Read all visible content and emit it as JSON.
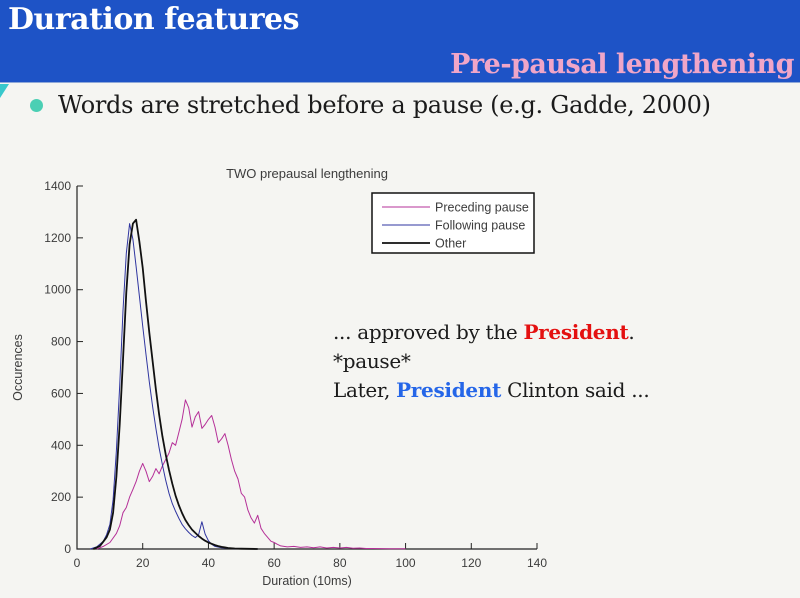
{
  "header": {
    "title": "Duration features",
    "subtitle": "Pre-pausal lengthening"
  },
  "bullet": {
    "text": "Words are stretched before a pause (e.g. Gadde, 2000)"
  },
  "annotation": {
    "line1_prefix": "... approved by the ",
    "line1_highlight": "President",
    "line1_suffix": ". *pause*",
    "line2_prefix": "Later, ",
    "line2_highlight": "President",
    "line2_suffix": " Clinton said ..."
  },
  "colors": {
    "header_bg": "#1e53c6",
    "subtitle_pink": "#f0a6c8",
    "bullet_mint": "#4bcfb4",
    "triangle_teal": "#38c8cc",
    "annotation_red": "#e41010",
    "annotation_blue": "#2566e8",
    "body_bg": "#f5f5f2"
  },
  "chart_data": {
    "type": "line",
    "title": "TWO prepausal lengthening",
    "xlabel": "Duration (10ms)",
    "ylabel": "Occurences",
    "xlim": [
      0,
      140
    ],
    "ylim": [
      0,
      1400
    ],
    "xticks": [
      0,
      20,
      40,
      60,
      80,
      100,
      120,
      140
    ],
    "yticks": [
      0,
      200,
      400,
      600,
      800,
      1000,
      1200,
      1400
    ],
    "grid": false,
    "legend_position": "upper right",
    "series": [
      {
        "name": "Preceding pause",
        "color": "#b53098",
        "width": 1,
        "points": [
          [
            6,
            0
          ],
          [
            8,
            10
          ],
          [
            10,
            25
          ],
          [
            12,
            60
          ],
          [
            13,
            90
          ],
          [
            14,
            140
          ],
          [
            15,
            160
          ],
          [
            16,
            200
          ],
          [
            17,
            230
          ],
          [
            18,
            260
          ],
          [
            19,
            300
          ],
          [
            20,
            330
          ],
          [
            21,
            300
          ],
          [
            22,
            260
          ],
          [
            23,
            280
          ],
          [
            24,
            310
          ],
          [
            25,
            290
          ],
          [
            26,
            320
          ],
          [
            27,
            345
          ],
          [
            28,
            370
          ],
          [
            29,
            410
          ],
          [
            30,
            400
          ],
          [
            31,
            450
          ],
          [
            32,
            500
          ],
          [
            33,
            575
          ],
          [
            34,
            545
          ],
          [
            35,
            470
          ],
          [
            36,
            510
          ],
          [
            37,
            530
          ],
          [
            38,
            465
          ],
          [
            39,
            480
          ],
          [
            40,
            500
          ],
          [
            41,
            515
          ],
          [
            42,
            470
          ],
          [
            43,
            410
          ],
          [
            44,
            425
          ],
          [
            45,
            445
          ],
          [
            46,
            400
          ],
          [
            47,
            345
          ],
          [
            48,
            300
          ],
          [
            49,
            270
          ],
          [
            50,
            215
          ],
          [
            51,
            200
          ],
          [
            52,
            150
          ],
          [
            53,
            120
          ],
          [
            54,
            100
          ],
          [
            55,
            130
          ],
          [
            56,
            80
          ],
          [
            57,
            60
          ],
          [
            58,
            45
          ],
          [
            59,
            30
          ],
          [
            60,
            25
          ],
          [
            61,
            18
          ],
          [
            62,
            12
          ],
          [
            63,
            10
          ],
          [
            64,
            8
          ],
          [
            66,
            10
          ],
          [
            68,
            6
          ],
          [
            70,
            8
          ],
          [
            72,
            5
          ],
          [
            74,
            8
          ],
          [
            76,
            4
          ],
          [
            78,
            6
          ],
          [
            80,
            4
          ],
          [
            82,
            6
          ],
          [
            84,
            3
          ],
          [
            86,
            4
          ],
          [
            88,
            2
          ],
          [
            90,
            2
          ],
          [
            95,
            1
          ],
          [
            100,
            1
          ]
        ]
      },
      {
        "name": "Following pause",
        "color": "#2f35a0",
        "width": 1,
        "points": [
          [
            4,
            0
          ],
          [
            6,
            8
          ],
          [
            8,
            30
          ],
          [
            9,
            55
          ],
          [
            10,
            95
          ],
          [
            11,
            190
          ],
          [
            12,
            380
          ],
          [
            13,
            630
          ],
          [
            14,
            920
          ],
          [
            15,
            1140
          ],
          [
            16,
            1255
          ],
          [
            17,
            1195
          ],
          [
            18,
            1090
          ],
          [
            19,
            975
          ],
          [
            20,
            860
          ],
          [
            21,
            750
          ],
          [
            22,
            645
          ],
          [
            23,
            550
          ],
          [
            24,
            465
          ],
          [
            25,
            390
          ],
          [
            26,
            325
          ],
          [
            27,
            265
          ],
          [
            28,
            215
          ],
          [
            29,
            175
          ],
          [
            30,
            145
          ],
          [
            31,
            118
          ],
          [
            32,
            95
          ],
          [
            33,
            78
          ],
          [
            34,
            64
          ],
          [
            35,
            52
          ],
          [
            36,
            44
          ],
          [
            37,
            55
          ],
          [
            38,
            105
          ],
          [
            39,
            58
          ],
          [
            40,
            32
          ],
          [
            41,
            18
          ],
          [
            42,
            10
          ],
          [
            44,
            5
          ],
          [
            46,
            3
          ],
          [
            48,
            1
          ],
          [
            50,
            0
          ]
        ]
      },
      {
        "name": "Other",
        "color": "#111111",
        "width": 1.8,
        "points": [
          [
            5,
            0
          ],
          [
            7,
            12
          ],
          [
            9,
            45
          ],
          [
            10,
            75
          ],
          [
            11,
            140
          ],
          [
            12,
            280
          ],
          [
            13,
            480
          ],
          [
            14,
            730
          ],
          [
            15,
            990
          ],
          [
            16,
            1175
          ],
          [
            17,
            1255
          ],
          [
            18,
            1270
          ],
          [
            19,
            1185
          ],
          [
            20,
            1085
          ],
          [
            21,
            955
          ],
          [
            22,
            835
          ],
          [
            23,
            725
          ],
          [
            24,
            615
          ],
          [
            25,
            520
          ],
          [
            26,
            435
          ],
          [
            27,
            365
          ],
          [
            28,
            305
          ],
          [
            29,
            252
          ],
          [
            30,
            205
          ],
          [
            31,
            168
          ],
          [
            32,
            138
          ],
          [
            33,
            112
          ],
          [
            34,
            92
          ],
          [
            35,
            75
          ],
          [
            36,
            62
          ],
          [
            37,
            50
          ],
          [
            38,
            40
          ],
          [
            39,
            32
          ],
          [
            40,
            25
          ],
          [
            41,
            20
          ],
          [
            42,
            15
          ],
          [
            43,
            11
          ],
          [
            44,
            8
          ],
          [
            45,
            6
          ],
          [
            46,
            4
          ],
          [
            48,
            2
          ],
          [
            50,
            1
          ],
          [
            55,
            0
          ]
        ]
      }
    ]
  }
}
